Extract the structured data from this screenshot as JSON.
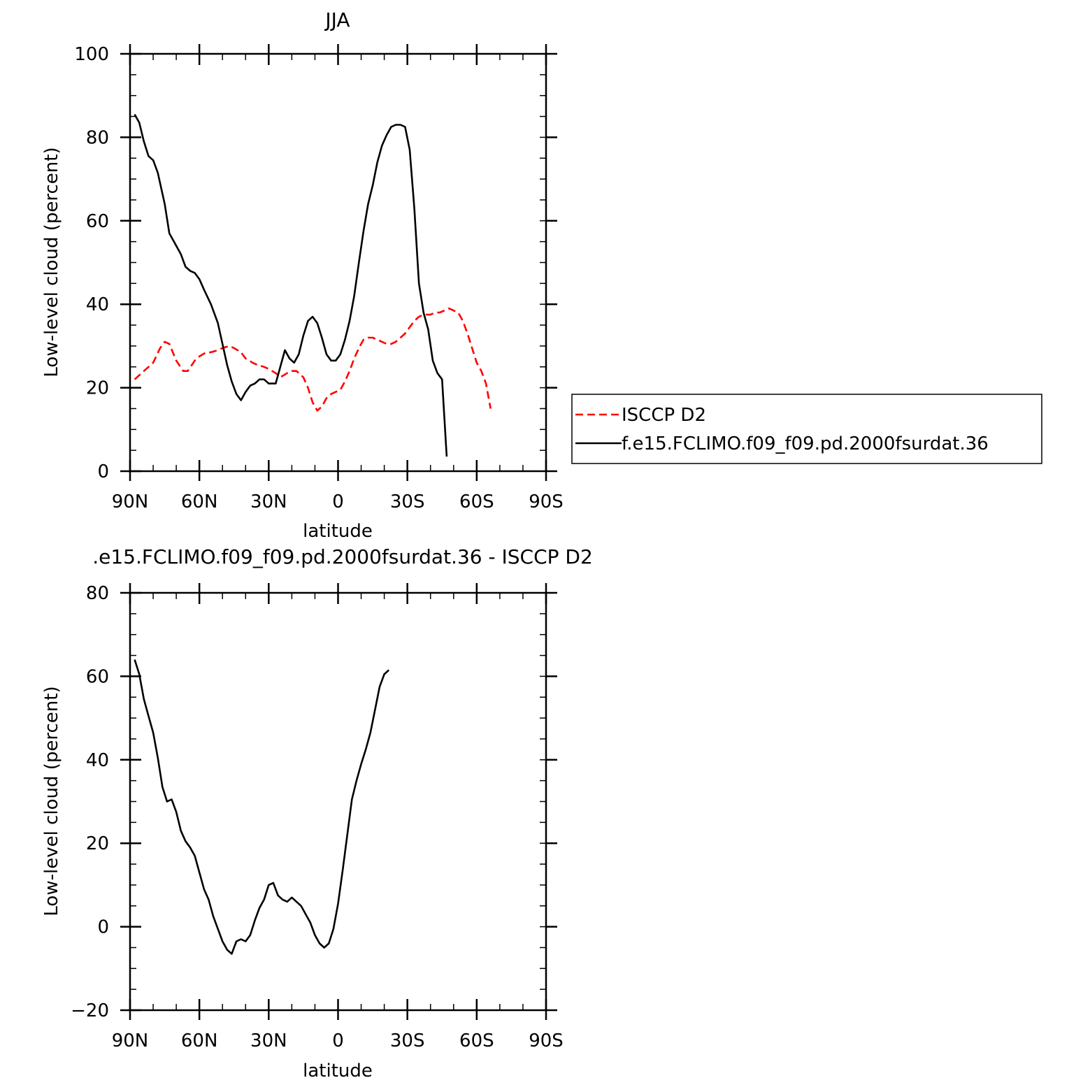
{
  "chart_data": [
    {
      "type": "line",
      "title": "JJA",
      "xlabel": "latitude",
      "ylabel": "Low-level cloud (percent)",
      "xlim": [
        90,
        -90
      ],
      "ylim": [
        0,
        100
      ],
      "yticks": [
        0,
        20,
        40,
        60,
        80,
        100
      ],
      "xticks": [
        {
          "value": 90,
          "label": "90N"
        },
        {
          "value": 60,
          "label": "60N"
        },
        {
          "value": 30,
          "label": "30N"
        },
        {
          "value": 0,
          "label": "0"
        },
        {
          "value": -30,
          "label": "30S"
        },
        {
          "value": -60,
          "label": "60S"
        },
        {
          "value": -90,
          "label": "90S"
        }
      ],
      "legend_position": "right",
      "series": [
        {
          "name": "ISCCP D2",
          "color": "#ff0000",
          "dash": true,
          "points": [
            [
              88,
              22
            ],
            [
              85,
              23.5
            ],
            [
              82,
              25
            ],
            [
              80,
              26
            ],
            [
              77,
              29.5
            ],
            [
              75,
              31
            ],
            [
              73,
              30.5
            ],
            [
              70,
              26.5
            ],
            [
              67,
              24
            ],
            [
              65,
              24
            ],
            [
              62,
              26.5
            ],
            [
              60,
              27.5
            ],
            [
              57,
              28.5
            ],
            [
              55,
              28.5
            ],
            [
              52,
              29
            ],
            [
              50,
              29.5
            ],
            [
              47,
              30
            ],
            [
              45,
              29.5
            ],
            [
              42,
              28.5
            ],
            [
              40,
              27
            ],
            [
              37,
              26
            ],
            [
              35,
              25.5
            ],
            [
              32,
              25
            ],
            [
              30,
              24.5
            ],
            [
              27,
              23.5
            ],
            [
              25,
              22.5
            ],
            [
              22,
              23.5
            ],
            [
              20,
              24
            ],
            [
              18,
              24
            ],
            [
              15,
              22.5
            ],
            [
              13,
              20
            ],
            [
              11,
              16.5
            ],
            [
              9,
              14.5
            ],
            [
              7,
              15.5
            ],
            [
              5,
              17.5
            ],
            [
              3,
              18.5
            ],
            [
              1,
              19
            ],
            [
              -1,
              19.5
            ],
            [
              -3,
              21.5
            ],
            [
              -5,
              24
            ],
            [
              -7,
              27
            ],
            [
              -9,
              29.5
            ],
            [
              -11,
              31.5
            ],
            [
              -13,
              32
            ],
            [
              -15,
              32
            ],
            [
              -17,
              31.5
            ],
            [
              -19,
              31
            ],
            [
              -21,
              30.5
            ],
            [
              -23,
              30.5
            ],
            [
              -25,
              31
            ],
            [
              -27,
              32
            ],
            [
              -29,
              33
            ],
            [
              -31,
              34.5
            ],
            [
              -33,
              36
            ],
            [
              -35,
              37
            ],
            [
              -37,
              37.5
            ],
            [
              -40,
              37.5
            ],
            [
              -42,
              38
            ],
            [
              -44,
              38
            ],
            [
              -46,
              38.5
            ],
            [
              -48,
              39
            ],
            [
              -50,
              38.5
            ],
            [
              -52,
              38
            ],
            [
              -54,
              36
            ],
            [
              -56,
              33
            ],
            [
              -58,
              29.5
            ],
            [
              -60,
              26
            ],
            [
              -62,
              24
            ],
            [
              -64,
              21
            ],
            [
              -66,
              15
            ]
          ]
        },
        {
          "name": "f.e15.FCLIMO.f09_f09.pd.2000fsurdat.36",
          "color": "#000000",
          "dash": false,
          "points": [
            [
              88,
              85.5
            ],
            [
              86,
              83.5
            ],
            [
              84,
              79
            ],
            [
              82,
              75.5
            ],
            [
              80,
              74.5
            ],
            [
              78,
              71.5
            ],
            [
              75,
              64
            ],
            [
              73,
              57
            ],
            [
              71,
              55
            ],
            [
              68,
              52
            ],
            [
              66,
              49
            ],
            [
              64,
              48
            ],
            [
              62,
              47.5
            ],
            [
              60,
              46
            ],
            [
              58,
              43.5
            ],
            [
              55,
              40
            ],
            [
              52,
              35.5
            ],
            [
              50,
              30.5
            ],
            [
              48,
              25.5
            ],
            [
              46,
              21.5
            ],
            [
              44,
              18.5
            ],
            [
              42,
              17
            ],
            [
              40,
              19
            ],
            [
              38,
              20.5
            ],
            [
              36,
              21
            ],
            [
              34,
              22
            ],
            [
              32,
              22
            ],
            [
              30,
              21
            ],
            [
              27,
              21
            ],
            [
              25,
              25
            ],
            [
              23,
              29
            ],
            [
              21,
              27
            ],
            [
              19,
              26
            ],
            [
              17,
              28
            ],
            [
              15,
              32.5
            ],
            [
              13,
              36
            ],
            [
              11,
              37
            ],
            [
              9,
              35.5
            ],
            [
              7,
              32
            ],
            [
              5,
              28
            ],
            [
              3,
              26.5
            ],
            [
              1,
              26.5
            ],
            [
              -1,
              28
            ],
            [
              -3,
              31.5
            ],
            [
              -5,
              36
            ],
            [
              -7,
              42
            ],
            [
              -9,
              50
            ],
            [
              -11,
              57.5
            ],
            [
              -13,
              64
            ],
            [
              -15,
              68.5
            ],
            [
              -17,
              74
            ],
            [
              -19,
              78
            ],
            [
              -21,
              80.5
            ],
            [
              -23,
              82.5
            ],
            [
              -25,
              83
            ],
            [
              -27,
              83
            ],
            [
              -29,
              82.5
            ],
            [
              -31,
              77
            ],
            [
              -33,
              63
            ],
            [
              -35,
              45
            ],
            [
              -37,
              38
            ],
            [
              -39,
              34
            ],
            [
              -41,
              26.5
            ],
            [
              -43,
              23.5
            ],
            [
              -45,
              22
            ],
            [
              -47,
              3.5
            ]
          ]
        }
      ]
    },
    {
      "type": "line",
      "title": ".e15.FCLIMO.f09_f09.pd.2000fsurdat.36 - ISCCP D2",
      "xlabel": "latitude",
      "ylabel": "Low-level cloud (percent)",
      "xlim": [
        90,
        -90
      ],
      "ylim": [
        -20,
        80
      ],
      "yticks": [
        -20,
        0,
        20,
        40,
        60,
        80
      ],
      "xticks": [
        {
          "value": 90,
          "label": "90N"
        },
        {
          "value": 60,
          "label": "60N"
        },
        {
          "value": 30,
          "label": "30N"
        },
        {
          "value": 0,
          "label": "0"
        },
        {
          "value": -30,
          "label": "30S"
        },
        {
          "value": -60,
          "label": "60S"
        },
        {
          "value": -90,
          "label": "90S"
        }
      ],
      "series": [
        {
          "color": "#000000",
          "dash": false,
          "points": [
            [
              88,
              64
            ],
            [
              86,
              60.5
            ],
            [
              84,
              54.5
            ],
            [
              82,
              50.5
            ],
            [
              80,
              46.5
            ],
            [
              78,
              40.5
            ],
            [
              76,
              33.5
            ],
            [
              74,
              30
            ],
            [
              72,
              30.5
            ],
            [
              70,
              27.5
            ],
            [
              68,
              23
            ],
            [
              66,
              20.5
            ],
            [
              64,
              19
            ],
            [
              62,
              17
            ],
            [
              60,
              13
            ],
            [
              58,
              9
            ],
            [
              56,
              6.5
            ],
            [
              54,
              2.5
            ],
            [
              52,
              -0.5
            ],
            [
              50,
              -3.5
            ],
            [
              48,
              -5.5
            ],
            [
              46,
              -6.5
            ],
            [
              44,
              -3.5
            ],
            [
              42,
              -3
            ],
            [
              40,
              -3.5
            ],
            [
              38,
              -2
            ],
            [
              36,
              1.5
            ],
            [
              34,
              4.5
            ],
            [
              32,
              6.5
            ],
            [
              30,
              10
            ],
            [
              28,
              10.5
            ],
            [
              26,
              7.5
            ],
            [
              24,
              6.5
            ],
            [
              22,
              6
            ],
            [
              20,
              7
            ],
            [
              18,
              6
            ],
            [
              16,
              5
            ],
            [
              14,
              3
            ],
            [
              12,
              1
            ],
            [
              10,
              -2
            ],
            [
              8,
              -4
            ],
            [
              6,
              -5
            ],
            [
              4,
              -4
            ],
            [
              2,
              -0.5
            ],
            [
              0,
              5.5
            ],
            [
              -2,
              13.5
            ],
            [
              -4,
              22
            ],
            [
              -6,
              30.5
            ],
            [
              -8,
              35
            ],
            [
              -10,
              39
            ],
            [
              -12,
              42.5
            ],
            [
              -14,
              46.5
            ],
            [
              -16,
              52
            ],
            [
              -18,
              57.5
            ],
            [
              -20,
              60.5
            ],
            [
              -22,
              61.5
            ]
          ]
        }
      ]
    }
  ]
}
